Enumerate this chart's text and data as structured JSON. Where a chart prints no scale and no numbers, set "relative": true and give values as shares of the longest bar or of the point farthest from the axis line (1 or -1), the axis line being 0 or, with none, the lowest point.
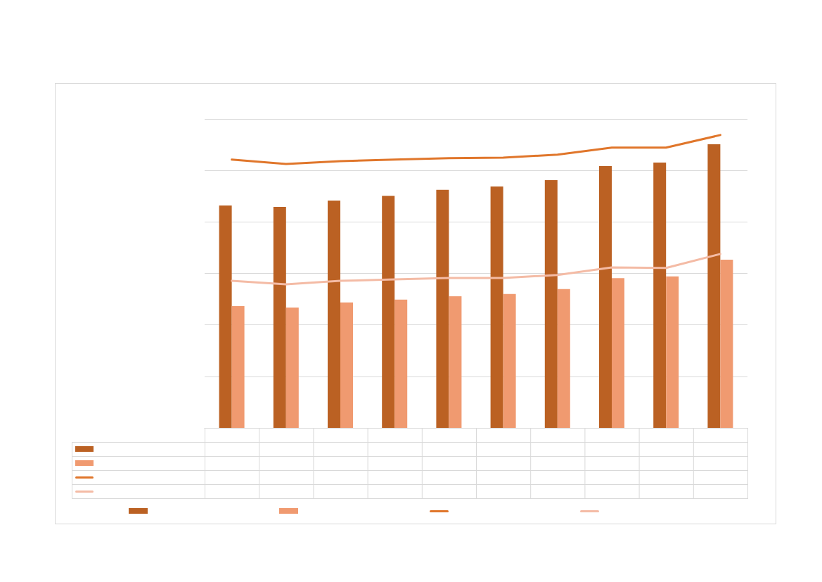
{
  "chart_data": [
    {
      "type": "bar",
      "relative": true,
      "grid": "y",
      "categories": [
        null,
        null,
        null,
        null,
        null,
        null,
        null,
        null,
        null,
        null
      ],
      "series": [
        {
          "color": "#bb6123",
          "values": [
            0.784,
            0.779,
            0.801,
            0.818,
            0.839,
            0.851,
            0.873,
            0.923,
            0.935,
            1
          ]
        },
        {
          "color": "#f09a70",
          "values": [
            0.429,
            0.424,
            0.442,
            0.452,
            0.464,
            0.472,
            0.489,
            0.528,
            0.534,
            0.593
          ]
        }
      ]
    },
    {
      "type": "line",
      "relative": true,
      "categories": [
        null,
        null,
        null,
        null,
        null,
        null,
        null,
        null,
        null,
        null
      ],
      "series": [
        {
          "color": "#e0762b",
          "values": [
            0.916,
            0.901,
            0.911,
            0.916,
            0.921,
            0.923,
            0.933,
            0.957,
            0.957,
            1
          ]
        },
        {
          "color": "#f4bba5",
          "values": [
            0.502,
            0.49,
            0.502,
            0.507,
            0.512,
            0.512,
            0.522,
            0.548,
            0.546,
            0.594
          ]
        }
      ]
    }
  ]
}
